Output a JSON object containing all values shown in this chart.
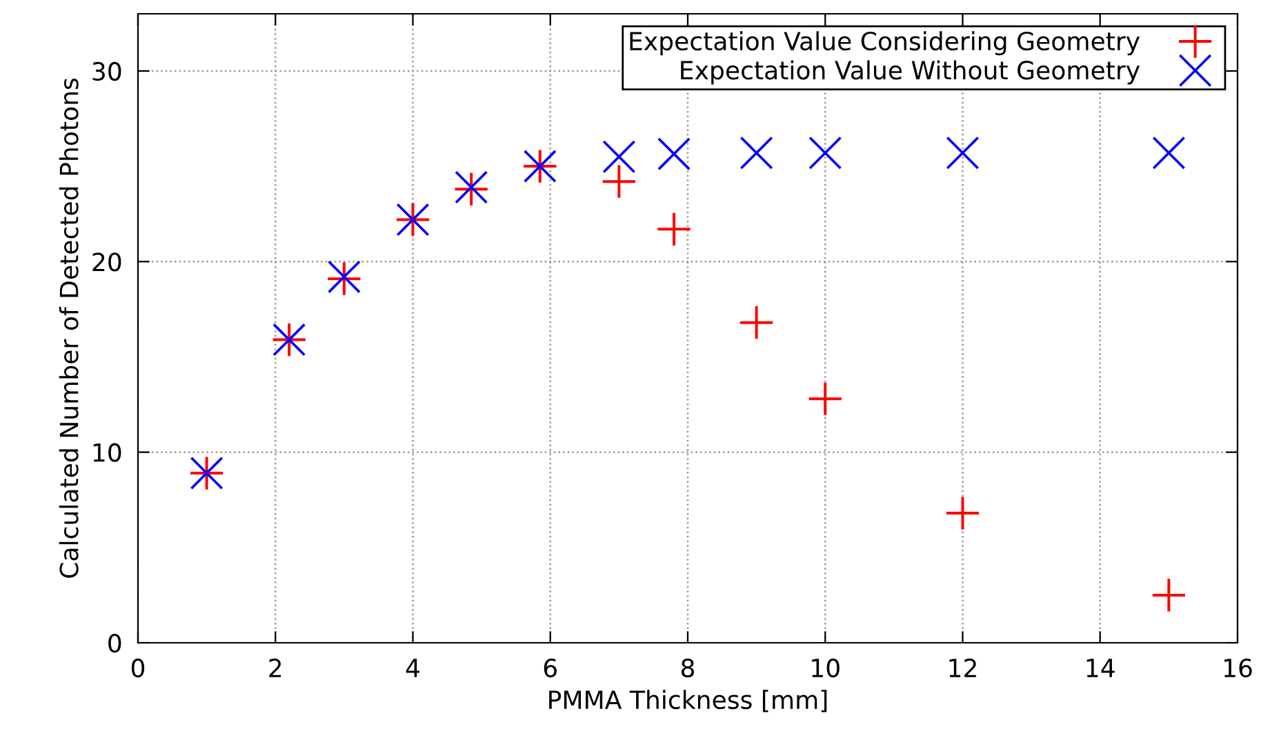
{
  "chart_data": {
    "type": "scatter",
    "xlabel": "PMMA Thickness [mm]",
    "ylabel": "Calculated Number of Detected Photons",
    "x": [
      1,
      2.2,
      3,
      4,
      4.85,
      5.85,
      7,
      7.8,
      9,
      10,
      12,
      15
    ],
    "series": [
      {
        "name": "Expectation Value Considering Geometry",
        "color": "#ff0000",
        "marker": "plus",
        "values": [
          8.9,
          15.9,
          19.1,
          22.2,
          23.8,
          25.0,
          24.2,
          21.7,
          16.8,
          12.8,
          6.8,
          2.5
        ]
      },
      {
        "name": "Expectation Value Without Geometry",
        "color": "#0000ff",
        "marker": "cross",
        "values": [
          8.9,
          15.9,
          19.2,
          22.2,
          23.9,
          25.0,
          25.5,
          25.65,
          25.7,
          25.7,
          25.7,
          25.7
        ]
      }
    ],
    "xlim": [
      0,
      16
    ],
    "xticks": [
      0,
      2,
      4,
      6,
      8,
      10,
      12,
      14,
      16
    ],
    "ylim": [
      0,
      33
    ],
    "yticks": [
      0,
      10,
      20,
      30
    ],
    "grid": true,
    "legend": "top right"
  }
}
